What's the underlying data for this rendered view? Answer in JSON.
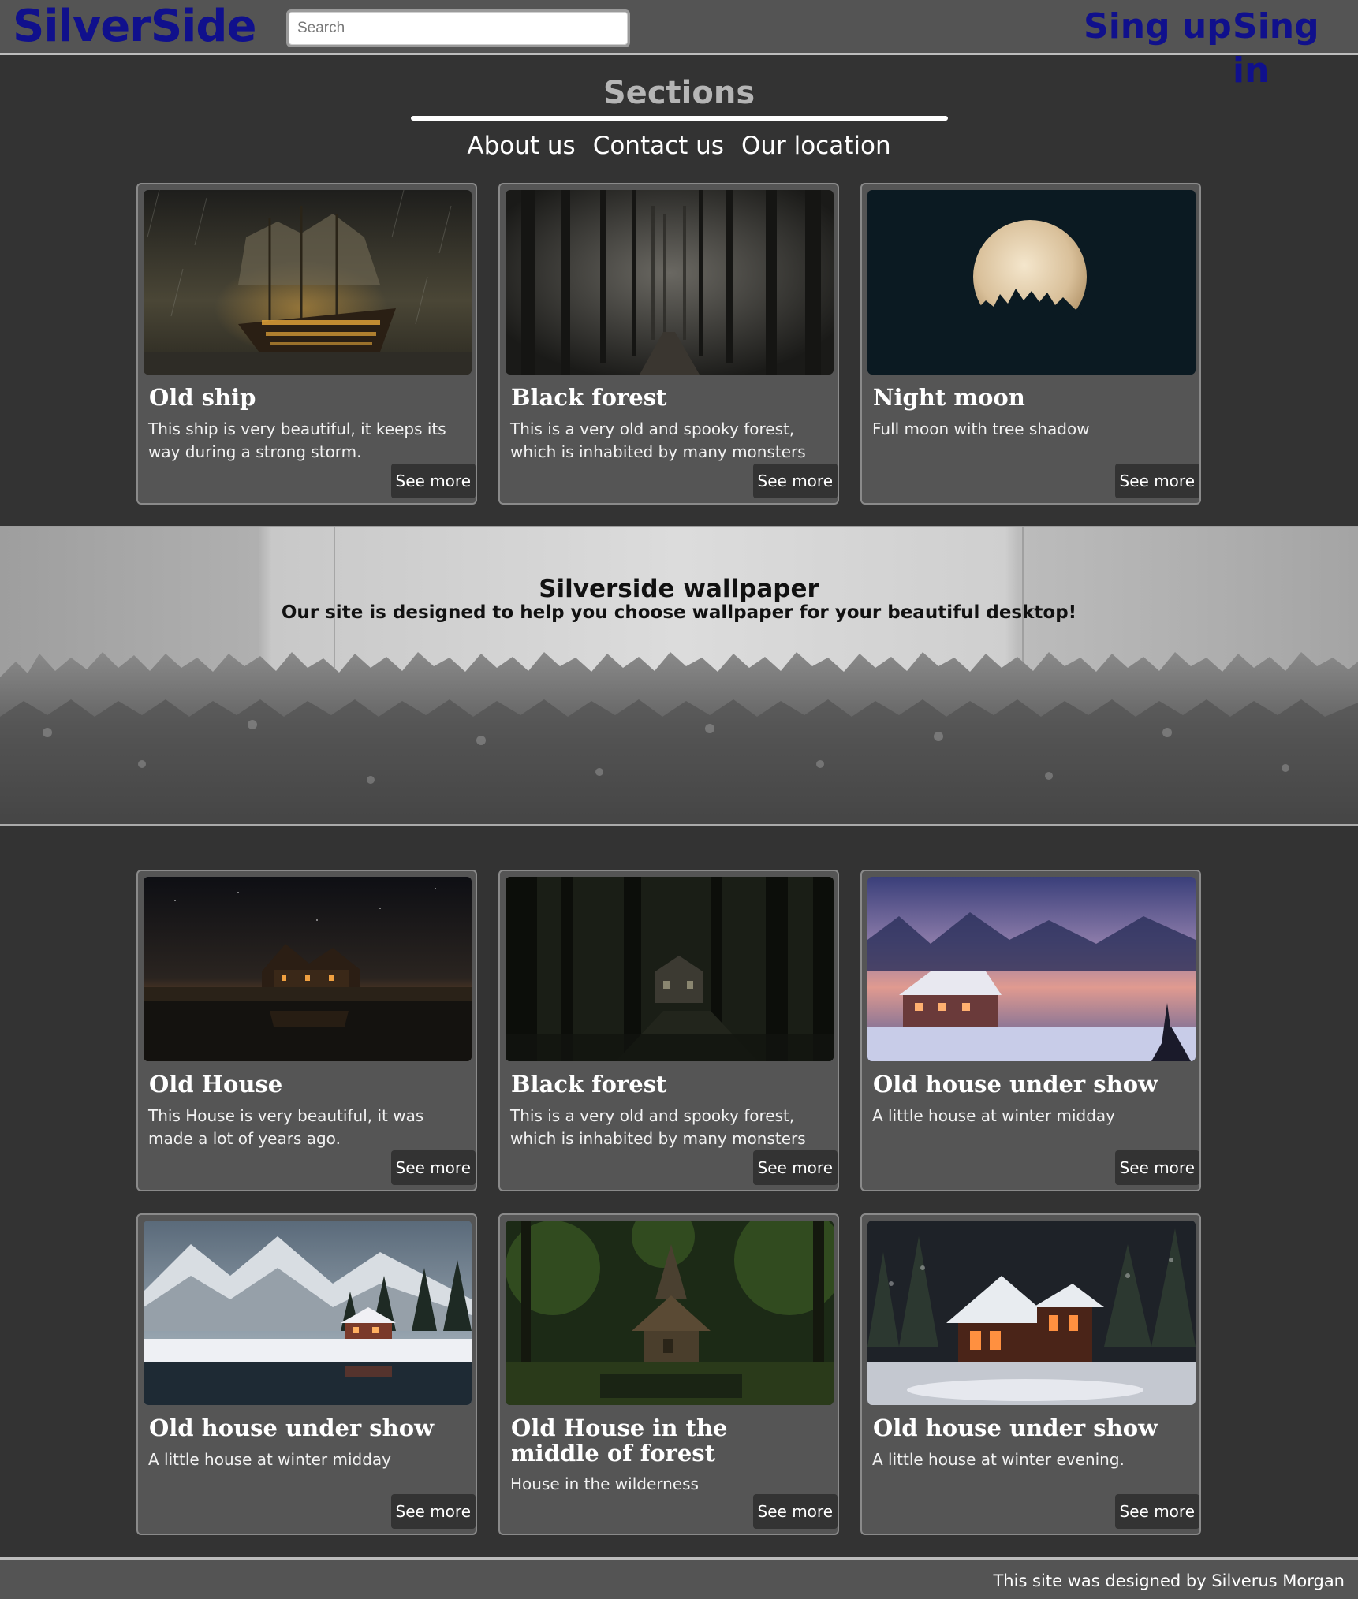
{
  "header": {
    "logo": "SilverSide",
    "search_placeholder": "Search",
    "signup_label": "Sing up",
    "signin_label": "Sing in",
    "brand_color": "#10108c"
  },
  "sections": {
    "title": "Sections",
    "links": [
      "About us",
      "Contact us",
      "Our location"
    ]
  },
  "top_cards": [
    {
      "title": "Old ship",
      "desc": "This ship is very beautiful, it keeps its way during a strong storm.",
      "button": "See more",
      "image": "stormy-ship"
    },
    {
      "title": "Black forest",
      "desc": "This is a very old and spooky forest, which is inhabited by many monsters",
      "button": "See more",
      "image": "dark-forest"
    },
    {
      "title": "Night moon",
      "desc": "Full moon with tree shadow",
      "button": "See more",
      "image": "full-moon"
    }
  ],
  "banner": {
    "title": "Silverside wallpaper",
    "subtitle": "Our site is designed to help you choose wallpaper for your beautiful desktop!"
  },
  "bottom_cards": [
    {
      "title": "Old House",
      "desc": "This House is very beautiful, it was made a lot of years ago.",
      "button": "See more",
      "image": "night-house"
    },
    {
      "title": "Black forest",
      "desc": "This is a very old and spooky forest, which is inhabited by many monsters",
      "button": "See more",
      "image": "forest-house"
    },
    {
      "title": "Old house under show",
      "desc": "A little house at winter midday",
      "button": "See more",
      "image": "winter-sunset-house"
    },
    {
      "title": "Old house under show",
      "desc": "A little house at winter midday",
      "button": "See more",
      "image": "mountain-lake-house"
    },
    {
      "title": "Old House in the middle of forest",
      "desc": "House in the wilderness",
      "button": "See more",
      "image": "green-forest-house"
    },
    {
      "title": "Old house under show",
      "desc": "A little house at winter evening.",
      "button": "See more",
      "image": "snow-cabin"
    }
  ],
  "footer": {
    "text": "This site was designed by Silverus Morgan"
  }
}
